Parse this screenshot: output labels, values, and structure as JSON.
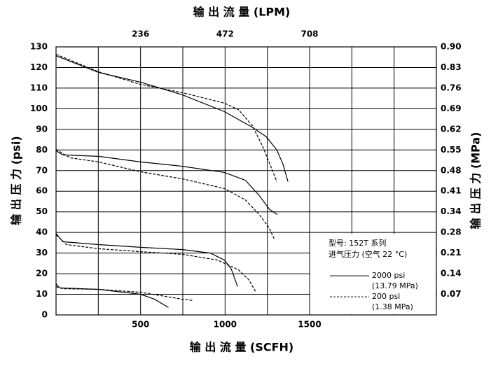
{
  "chart_data": {
    "type": "line",
    "title": "输 出 流 量 (LPM)",
    "xlabel": "输 出 流 量 (SCFH)",
    "ylabel": "输 出 压 力 (psi)",
    "y2label": "输 出 压 力 (MPa)",
    "xlim": [
      0,
      2250
    ],
    "ylim": [
      0,
      130
    ],
    "y2lim": [
      0,
      130
    ],
    "xticks": [
      500,
      1000,
      1500
    ],
    "x2ticks": [
      {
        "value": 500,
        "label": "236"
      },
      {
        "value": 1000,
        "label": "472"
      },
      {
        "value": 1500,
        "label": "708"
      }
    ],
    "yticks": [
      0,
      10,
      20,
      30,
      40,
      50,
      60,
      70,
      80,
      90,
      100,
      110,
      120,
      130
    ],
    "y2ticks": [
      {
        "value": 130,
        "label": "0.90"
      },
      {
        "value": 120,
        "label": "0.83"
      },
      {
        "value": 110,
        "label": "0.76"
      },
      {
        "value": 100,
        "label": "0.69"
      },
      {
        "value": 90,
        "label": "0.62"
      },
      {
        "value": 80,
        "label": "0.55"
      },
      {
        "value": 70,
        "label": "0.48"
      },
      {
        "value": 60,
        "label": "0.41"
      },
      {
        "value": 50,
        "label": "0.34"
      },
      {
        "value": 40,
        "label": "0.28"
      },
      {
        "value": 30,
        "label": "0.21"
      },
      {
        "value": 20,
        "label": "0.14"
      },
      {
        "value": 10,
        "label": "0.07"
      }
    ],
    "grid": true,
    "annotation": [
      "型号: 152T 系列",
      "进气压力 (空气 22 °C)"
    ],
    "legend": [
      {
        "label": [
          "2000 psi",
          "(13.79 MPa)"
        ],
        "dashed": false
      },
      {
        "label": [
          "200 psi",
          "(1.38 MPa)"
        ],
        "dashed": true
      }
    ],
    "series": [
      {
        "dashed": false,
        "color": "#000000",
        "x": [
          0,
          252,
          500,
          748,
          996,
          1161,
          1244,
          1306,
          1343,
          1372
        ],
        "values": [
          125.7,
          117.6,
          112.9,
          106.7,
          98.6,
          91,
          86.4,
          80,
          73,
          64.7
        ]
      },
      {
        "dashed": true,
        "color": "#000000",
        "x": [
          0,
          252,
          500,
          748,
          996,
          1079,
          1161,
          1223,
          1273,
          1306
        ],
        "values": [
          126.4,
          117.9,
          111.8,
          107.8,
          102.7,
          99.6,
          91.8,
          81.6,
          71.5,
          64.7
        ]
      },
      {
        "dashed": false,
        "color": "#000000",
        "x": [
          0,
          41,
          252,
          500,
          748,
          996,
          1120,
          1202,
          1264,
          1310
        ],
        "values": [
          79.6,
          77.6,
          76.9,
          74.2,
          72.1,
          69.1,
          65.3,
          57.9,
          51.1,
          48.7
        ]
      },
      {
        "dashed": true,
        "color": "#000000",
        "x": [
          0,
          83,
          252,
          500,
          748,
          996,
          1120,
          1202,
          1260,
          1293
        ],
        "values": [
          80.3,
          76.2,
          74.2,
          69.4,
          66,
          61.3,
          55.8,
          48.7,
          42.3,
          36.5
        ]
      },
      {
        "dashed": false,
        "color": "#000000",
        "x": [
          0,
          41,
          252,
          500,
          748,
          913,
          996,
          1037,
          1074
        ],
        "values": [
          39.5,
          35.5,
          34.1,
          32.8,
          31.7,
          30,
          26.6,
          22.2,
          13.7
        ]
      },
      {
        "dashed": true,
        "color": "#000000",
        "x": [
          0,
          62,
          252,
          500,
          748,
          955,
          1079,
          1140,
          1182
        ],
        "values": [
          38.9,
          34.1,
          32.1,
          30.7,
          29.4,
          26.6,
          21.9,
          17.1,
          11
        ]
      },
      {
        "dashed": false,
        "color": "#000000",
        "x": [
          0,
          21,
          252,
          500,
          583,
          665
        ],
        "values": [
          15.1,
          13.1,
          12.4,
          10,
          7.6,
          3.6
        ]
      },
      {
        "dashed": true,
        "color": "#000000",
        "x": [
          0,
          41,
          252,
          500,
          748,
          814
        ],
        "values": [
          13.7,
          12.7,
          12.4,
          11,
          7.6,
          7
        ]
      }
    ]
  }
}
